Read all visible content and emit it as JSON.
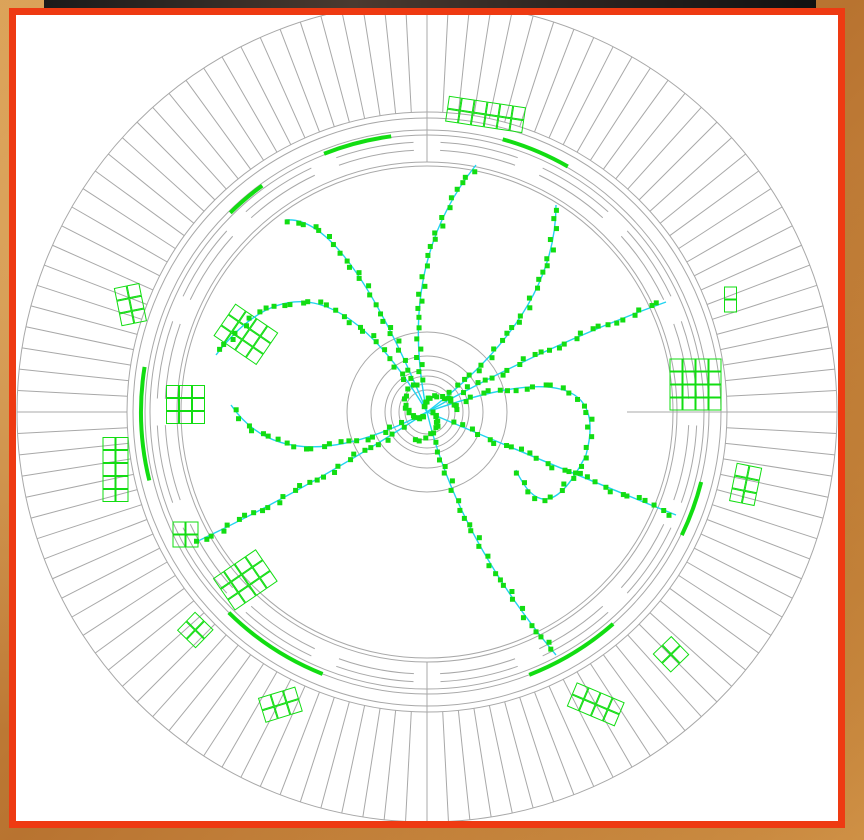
{
  "display": {
    "kind": "particle-collision-event",
    "colors": {
      "frame": "#ee3a12",
      "background": "#c9863b",
      "detector_lines": "#a8a8a8",
      "hits": "#12dd12",
      "calorimeter_cells": "#12dd12",
      "tracks": "#22d3f0"
    },
    "track_count": 8
  }
}
